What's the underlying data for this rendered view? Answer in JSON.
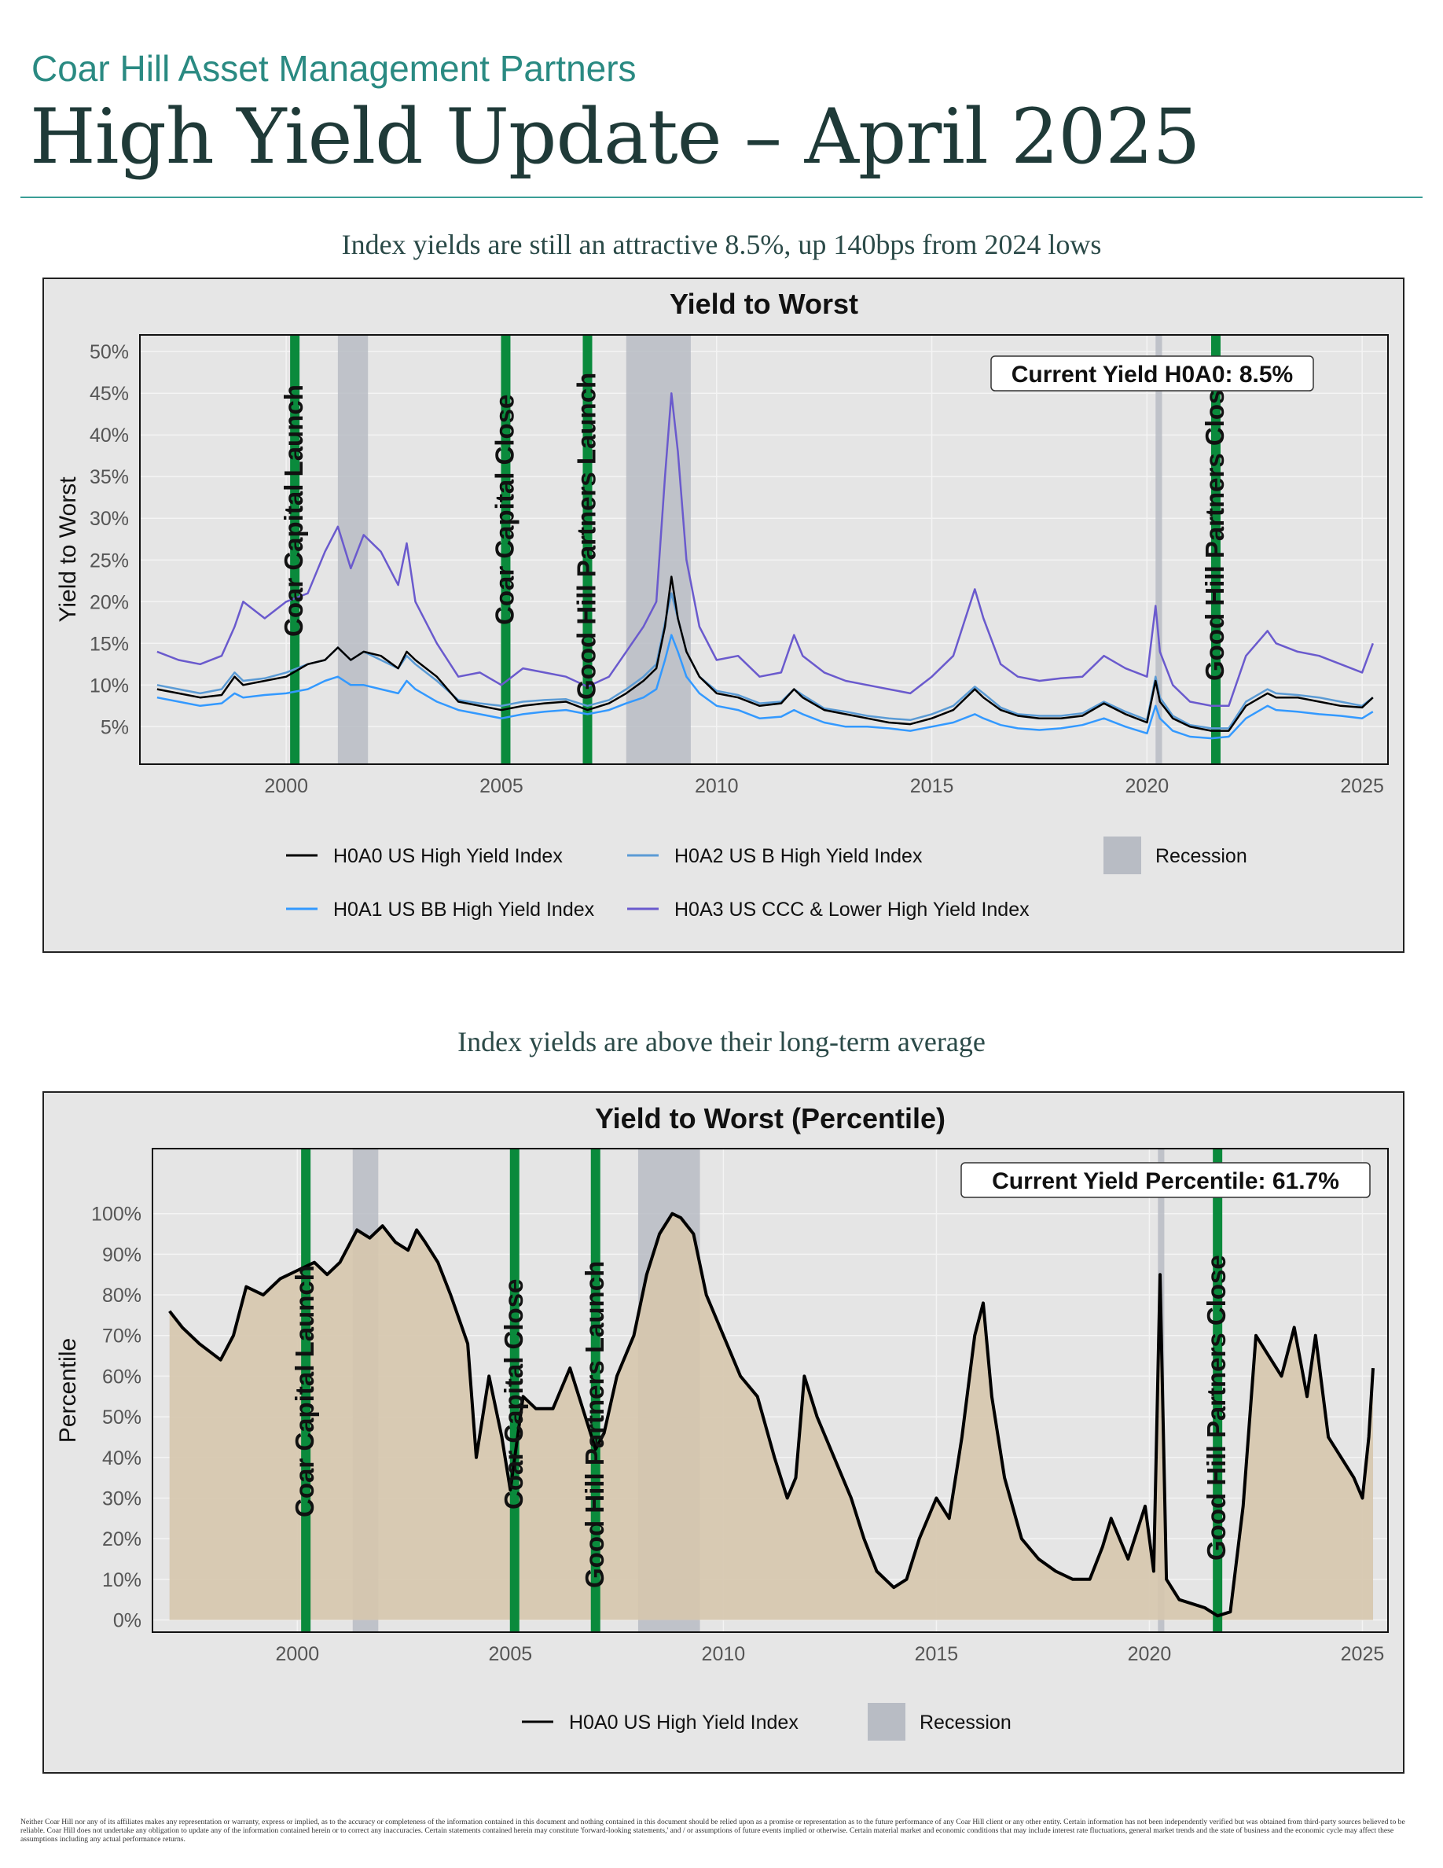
{
  "header": {
    "firm": "Coar Hill Asset Management Partners",
    "title": "High Yield Update – April 2025"
  },
  "sections": [
    {
      "subtitle": "Index yields are still an attractive 8.5%, up 140bps from 2024 lows"
    },
    {
      "subtitle": "Index yields are above their long-term average"
    }
  ],
  "disclaimer": "Neither Coar Hill nor any of its affiliates makes any representation or warranty, express or implied, as to the accuracy or completeness of the information contained in this document and nothing contained in this document should be relied upon as a promise or representation as to the future performance of any Coar Hill client or any other entity. Certain information has not been independently verified but was obtained from third-party sources believed to be reliable. Coar Hill does not undertake any obligation to update any of the information contained herein or to correct any inaccuracies. Certain statements contained herein may constitute 'forward-looking statements,' and / or assumptions of future events implied or otherwise. Certain material market and economic conditions that may include interest rate fluctuations, general market trends and the state of business and the economic cycle may affect these assumptions including any actual performance returns.",
  "colors": {
    "H0A0": "#000000",
    "H0A1": "#3399ff",
    "H0A2": "#5b9bd5",
    "H0A3": "#6a5acd",
    "event": "#0a8a3c",
    "recession": "#b8bcc4",
    "panel": "#e5e5e5",
    "fill": "#d6c7ad"
  },
  "chart_data": [
    {
      "type": "line",
      "title": "Yield to Worst",
      "ylabel": "Yield to Worst",
      "xlim": [
        1996.6,
        2025.6
      ],
      "ylim": [
        0.5,
        52
      ],
      "x_ticks": [
        2000,
        2005,
        2010,
        2015,
        2020,
        2025
      ],
      "y_ticks": [
        5,
        10,
        15,
        20,
        25,
        30,
        35,
        40,
        45,
        50
      ],
      "y_tick_format": "percent",
      "grid": true,
      "legend": "bottom",
      "legend_recession": "Recession",
      "annotation": "Current Yield H0A0: 8.5%",
      "recessions": [
        [
          2001.2,
          2001.9
        ],
        [
          2007.9,
          2009.4
        ],
        [
          2020.2,
          2020.35
        ]
      ],
      "events": [
        {
          "x": 2000.2,
          "label": "Coar Capital Launch"
        },
        {
          "x": 2005.1,
          "label": "Coar Capital Close"
        },
        {
          "x": 2007.0,
          "label": "Good Hill Partners Launch"
        },
        {
          "x": 2021.6,
          "label": "Good Hill Partners Close"
        }
      ],
      "series": [
        {
          "name": "H0A0 US High Yield Index",
          "key": "H0A0",
          "x": [
            1997.0,
            1997.5,
            1998.0,
            1998.5,
            1998.8,
            1999.0,
            1999.5,
            2000.0,
            2000.5,
            2000.9,
            2001.2,
            2001.5,
            2001.8,
            2002.2,
            2002.6,
            2002.8,
            2003.0,
            2003.5,
            2004.0,
            2004.5,
            2005.0,
            2005.5,
            2006.0,
            2006.5,
            2007.0,
            2007.5,
            2007.9,
            2008.3,
            2008.6,
            2008.8,
            2008.95,
            2009.1,
            2009.3,
            2009.6,
            2010.0,
            2010.5,
            2011.0,
            2011.5,
            2011.8,
            2012.0,
            2012.5,
            2013.0,
            2013.5,
            2014.0,
            2014.5,
            2015.0,
            2015.5,
            2016.0,
            2016.2,
            2016.6,
            2017.0,
            2017.5,
            2018.0,
            2018.5,
            2019.0,
            2019.5,
            2020.0,
            2020.2,
            2020.3,
            2020.6,
            2021.0,
            2021.5,
            2021.9,
            2022.3,
            2022.8,
            2023.0,
            2023.5,
            2024.0,
            2024.5,
            2025.0,
            2025.25
          ],
          "values": [
            9.5,
            9.0,
            8.5,
            8.8,
            11.0,
            10.0,
            10.5,
            11.0,
            12.5,
            13.0,
            14.5,
            13.0,
            14.0,
            13.5,
            12.0,
            14.0,
            13.0,
            11.0,
            8.0,
            7.5,
            7.0,
            7.5,
            7.8,
            8.0,
            7.0,
            7.8,
            9.0,
            10.5,
            12.0,
            17.0,
            23.0,
            18.0,
            14.0,
            11.0,
            9.0,
            8.5,
            7.5,
            7.8,
            9.5,
            8.5,
            7.0,
            6.5,
            6.0,
            5.5,
            5.3,
            6.0,
            7.0,
            9.5,
            8.5,
            7.0,
            6.3,
            6.0,
            6.0,
            6.3,
            7.8,
            6.5,
            5.5,
            10.5,
            8.0,
            6.0,
            5.0,
            4.5,
            4.5,
            7.5,
            9.0,
            8.5,
            8.5,
            8.0,
            7.5,
            7.3,
            8.5
          ]
        },
        {
          "name": "H0A1 US BB High Yield Index",
          "key": "H0A1",
          "x": [
            1997.0,
            1997.5,
            1998.0,
            1998.5,
            1998.8,
            1999.0,
            1999.5,
            2000.0,
            2000.5,
            2000.9,
            2001.2,
            2001.5,
            2001.8,
            2002.2,
            2002.6,
            2002.8,
            2003.0,
            2003.5,
            2004.0,
            2004.5,
            2005.0,
            2005.5,
            2006.0,
            2006.5,
            2007.0,
            2007.5,
            2007.9,
            2008.3,
            2008.6,
            2008.8,
            2008.95,
            2009.1,
            2009.3,
            2009.6,
            2010.0,
            2010.5,
            2011.0,
            2011.5,
            2011.8,
            2012.0,
            2012.5,
            2013.0,
            2013.5,
            2014.0,
            2014.5,
            2015.0,
            2015.5,
            2016.0,
            2016.2,
            2016.6,
            2017.0,
            2017.5,
            2018.0,
            2018.5,
            2019.0,
            2019.5,
            2020.0,
            2020.2,
            2020.3,
            2020.6,
            2021.0,
            2021.5,
            2021.9,
            2022.3,
            2022.8,
            2023.0,
            2023.5,
            2024.0,
            2024.5,
            2025.0,
            2025.25
          ],
          "values": [
            8.5,
            8.0,
            7.5,
            7.8,
            9.0,
            8.5,
            8.8,
            9.0,
            9.5,
            10.5,
            11.0,
            10.0,
            10.0,
            9.5,
            9.0,
            10.5,
            9.5,
            8.0,
            7.0,
            6.5,
            6.0,
            6.5,
            6.8,
            7.0,
            6.5,
            7.0,
            7.8,
            8.5,
            9.5,
            13.0,
            16.0,
            14.0,
            11.0,
            9.0,
            7.5,
            7.0,
            6.0,
            6.2,
            7.0,
            6.5,
            5.5,
            5.0,
            5.0,
            4.8,
            4.5,
            5.0,
            5.5,
            6.5,
            6.0,
            5.2,
            4.8,
            4.6,
            4.8,
            5.2,
            6.0,
            5.0,
            4.2,
            7.5,
            6.0,
            4.5,
            3.8,
            3.6,
            3.8,
            6.0,
            7.5,
            7.0,
            6.8,
            6.5,
            6.3,
            6.0,
            6.8
          ]
        },
        {
          "name": "H0A2 US B High Yield Index",
          "key": "H0A2",
          "x": [
            1997.0,
            1997.5,
            1998.0,
            1998.5,
            1998.8,
            1999.0,
            1999.5,
            2000.0,
            2000.5,
            2000.9,
            2001.2,
            2001.5,
            2001.8,
            2002.2,
            2002.6,
            2002.8,
            2003.0,
            2003.5,
            2004.0,
            2004.5,
            2005.0,
            2005.5,
            2006.0,
            2006.5,
            2007.0,
            2007.5,
            2007.9,
            2008.3,
            2008.6,
            2008.8,
            2008.95,
            2009.1,
            2009.3,
            2009.6,
            2010.0,
            2010.5,
            2011.0,
            2011.5,
            2011.8,
            2012.0,
            2012.5,
            2013.0,
            2013.5,
            2014.0,
            2014.5,
            2015.0,
            2015.5,
            2016.0,
            2016.2,
            2016.6,
            2017.0,
            2017.5,
            2018.0,
            2018.5,
            2019.0,
            2019.5,
            2020.0,
            2020.2,
            2020.3,
            2020.6,
            2021.0,
            2021.5,
            2021.9,
            2022.3,
            2022.8,
            2023.0,
            2023.5,
            2024.0,
            2024.5,
            2025.0,
            2025.25
          ],
          "values": [
            10.0,
            9.5,
            9.0,
            9.5,
            11.5,
            10.5,
            10.8,
            11.5,
            12.5,
            13.0,
            14.5,
            13.0,
            14.0,
            13.0,
            12.0,
            13.5,
            12.5,
            10.5,
            8.2,
            7.8,
            7.5,
            8.0,
            8.2,
            8.3,
            7.5,
            8.2,
            9.5,
            11.0,
            12.5,
            17.5,
            21.0,
            18.0,
            14.0,
            11.0,
            9.3,
            8.8,
            7.8,
            8.0,
            9.5,
            8.8,
            7.2,
            6.8,
            6.3,
            6.0,
            5.8,
            6.5,
            7.5,
            9.8,
            9.0,
            7.3,
            6.5,
            6.3,
            6.3,
            6.6,
            8.0,
            6.8,
            5.8,
            11.0,
            8.5,
            6.3,
            5.2,
            4.8,
            4.8,
            8.0,
            9.5,
            9.0,
            8.8,
            8.5,
            8.0,
            7.5,
            8.5
          ]
        },
        {
          "name": "H0A3 US CCC & Lower High Yield Index",
          "key": "H0A3",
          "x": [
            1997.0,
            1997.5,
            1998.0,
            1998.5,
            1998.8,
            1999.0,
            1999.5,
            2000.0,
            2000.5,
            2000.9,
            2001.2,
            2001.5,
            2001.8,
            2002.2,
            2002.6,
            2002.8,
            2003.0,
            2003.5,
            2004.0,
            2004.5,
            2005.0,
            2005.5,
            2006.0,
            2006.5,
            2007.0,
            2007.5,
            2007.9,
            2008.3,
            2008.6,
            2008.8,
            2008.95,
            2009.1,
            2009.3,
            2009.6,
            2010.0,
            2010.5,
            2011.0,
            2011.5,
            2011.8,
            2012.0,
            2012.5,
            2013.0,
            2013.5,
            2014.0,
            2014.5,
            2015.0,
            2015.5,
            2016.0,
            2016.2,
            2016.6,
            2017.0,
            2017.5,
            2018.0,
            2018.5,
            2019.0,
            2019.5,
            2020.0,
            2020.2,
            2020.3,
            2020.6,
            2021.0,
            2021.5,
            2021.9,
            2022.3,
            2022.8,
            2023.0,
            2023.5,
            2024.0,
            2024.5,
            2025.0,
            2025.25
          ],
          "values": [
            14.0,
            13.0,
            12.5,
            13.5,
            17.0,
            20.0,
            18.0,
            20.0,
            21.0,
            26.0,
            29.0,
            24.0,
            28.0,
            26.0,
            22.0,
            27.0,
            20.0,
            15.0,
            11.0,
            11.5,
            10.0,
            12.0,
            11.5,
            11.0,
            9.8,
            11.0,
            14.0,
            17.0,
            20.0,
            35.0,
            45.0,
            38.0,
            25.0,
            17.0,
            13.0,
            13.5,
            11.0,
            11.5,
            16.0,
            13.5,
            11.5,
            10.5,
            10.0,
            9.5,
            9.0,
            11.0,
            13.5,
            21.5,
            18.0,
            12.5,
            11.0,
            10.5,
            10.8,
            11.0,
            13.5,
            12.0,
            11.0,
            19.5,
            14.0,
            10.0,
            8.0,
            7.5,
            7.5,
            13.5,
            16.5,
            15.0,
            14.0,
            13.5,
            12.5,
            11.5,
            15.0
          ]
        }
      ]
    },
    {
      "type": "area",
      "title": "Yield to Worst (Percentile)",
      "ylabel": "Percentile",
      "xlim": [
        1996.6,
        2025.6
      ],
      "ylim": [
        -3,
        116
      ],
      "x_ticks": [
        2000,
        2005,
        2010,
        2015,
        2020,
        2025
      ],
      "y_ticks": [
        0,
        10,
        20,
        30,
        40,
        50,
        60,
        70,
        80,
        90,
        100
      ],
      "y_tick_format": "percent",
      "grid": true,
      "legend": "bottom",
      "legend_recession": "Recession",
      "annotation": "Current Yield Percentile: 61.7%",
      "recessions": [
        [
          2001.3,
          2001.9
        ],
        [
          2008.0,
          2009.45
        ],
        [
          2020.2,
          2020.35
        ]
      ],
      "events": [
        {
          "x": 2000.2,
          "label": "Coar Capital Launch"
        },
        {
          "x": 2005.1,
          "label": "Coar Capital Close"
        },
        {
          "x": 2007.0,
          "label": "Good Hill Partners Launch"
        },
        {
          "x": 2021.6,
          "label": "Good Hill Partners Close"
        }
      ],
      "series": [
        {
          "name": "H0A0 US High Yield Index",
          "key": "H0A0",
          "x": [
            1997.0,
            1997.3,
            1997.7,
            1998.2,
            1998.5,
            1998.8,
            1999.2,
            1999.6,
            2000.0,
            2000.4,
            2000.7,
            2001.0,
            2001.4,
            2001.7,
            2002.0,
            2002.3,
            2002.6,
            2002.8,
            2003.0,
            2003.3,
            2003.6,
            2004.0,
            2004.2,
            2004.5,
            2004.8,
            2005.0,
            2005.3,
            2005.6,
            2006.0,
            2006.4,
            2006.7,
            2007.0,
            2007.2,
            2007.5,
            2007.9,
            2008.2,
            2008.5,
            2008.8,
            2009.0,
            2009.3,
            2009.6,
            2010.0,
            2010.4,
            2010.8,
            2011.2,
            2011.5,
            2011.7,
            2011.9,
            2012.2,
            2012.6,
            2013.0,
            2013.3,
            2013.6,
            2014.0,
            2014.3,
            2014.6,
            2015.0,
            2015.3,
            2015.6,
            2015.9,
            2016.1,
            2016.3,
            2016.6,
            2017.0,
            2017.4,
            2017.8,
            2018.2,
            2018.6,
            2018.9,
            2019.1,
            2019.5,
            2019.9,
            2020.1,
            2020.25,
            2020.4,
            2020.7,
            2021.0,
            2021.3,
            2021.6,
            2021.9,
            2022.2,
            2022.5,
            2022.8,
            2023.1,
            2023.4,
            2023.7,
            2023.9,
            2024.2,
            2024.5,
            2024.8,
            2025.0,
            2025.15,
            2025.25
          ],
          "values": [
            76,
            72,
            68,
            64,
            70,
            82,
            80,
            84,
            86,
            88,
            85,
            88,
            96,
            94,
            97,
            93,
            91,
            96,
            93,
            88,
            80,
            68,
            40,
            60,
            45,
            32,
            55,
            52,
            52,
            62,
            52,
            42,
            46,
            60,
            70,
            85,
            95,
            100,
            99,
            95,
            80,
            70,
            60,
            55,
            40,
            30,
            35,
            60,
            50,
            40,
            30,
            20,
            12,
            8,
            10,
            20,
            30,
            25,
            45,
            70,
            78,
            55,
            35,
            20,
            15,
            12,
            10,
            10,
            18,
            25,
            15,
            28,
            12,
            85,
            10,
            5,
            4,
            3,
            1,
            2,
            28,
            70,
            65,
            60,
            72,
            55,
            70,
            45,
            40,
            35,
            30,
            45,
            62
          ]
        }
      ]
    }
  ]
}
